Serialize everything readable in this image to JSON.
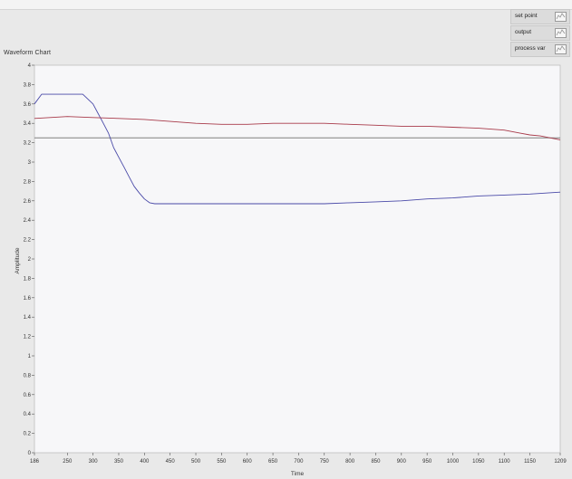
{
  "chart_data": {
    "type": "line",
    "title": "Waveform Chart",
    "xlabel": "Time",
    "ylabel": "Amplitude",
    "xlim": [
      186,
      1209
    ],
    "ylim": [
      0,
      4
    ],
    "x_ticks": [
      "186",
      "250",
      "300",
      "350",
      "400",
      "450",
      "500",
      "550",
      "600",
      "650",
      "700",
      "750",
      "800",
      "850",
      "900",
      "950",
      "1000",
      "1050",
      "1100",
      "1150",
      "1209"
    ],
    "x_tick_values": [
      186,
      250,
      300,
      350,
      400,
      450,
      500,
      550,
      600,
      650,
      700,
      750,
      800,
      850,
      900,
      950,
      1000,
      1050,
      1100,
      1150,
      1209
    ],
    "y_ticks": [
      "0",
      "0.2",
      "0.4",
      "0.6",
      "0.8",
      "1",
      "1.2",
      "1.4",
      "1.6",
      "1.8",
      "2",
      "2.2",
      "2.4",
      "2.6",
      "2.8",
      "3",
      "3.2",
      "3.4",
      "3.6",
      "3.8",
      "4"
    ],
    "grid": false,
    "legend_position": "top-right",
    "series": [
      {
        "name": "set point",
        "color": "#808080",
        "x": [
          186,
          1209
        ],
        "y": [
          3.25,
          3.25
        ]
      },
      {
        "name": "output",
        "color": "#4a4aa8",
        "x": [
          186,
          200,
          220,
          240,
          260,
          280,
          300,
          310,
          320,
          330,
          340,
          350,
          360,
          370,
          380,
          390,
          400,
          410,
          420,
          430,
          450,
          500,
          550,
          600,
          650,
          700,
          750,
          800,
          850,
          900,
          950,
          1000,
          1050,
          1100,
          1150,
          1209
        ],
        "y": [
          3.6,
          3.7,
          3.7,
          3.7,
          3.7,
          3.7,
          3.6,
          3.5,
          3.4,
          3.3,
          3.15,
          3.05,
          2.95,
          2.85,
          2.75,
          2.68,
          2.62,
          2.58,
          2.57,
          2.57,
          2.57,
          2.57,
          2.57,
          2.57,
          2.57,
          2.57,
          2.57,
          2.58,
          2.59,
          2.6,
          2.62,
          2.63,
          2.65,
          2.66,
          2.67,
          2.69
        ]
      },
      {
        "name": "process var",
        "color": "#a83a4a",
        "x": [
          186,
          250,
          300,
          350,
          400,
          450,
          500,
          550,
          600,
          650,
          700,
          750,
          800,
          850,
          900,
          950,
          1000,
          1050,
          1100,
          1130,
          1150,
          1170,
          1190,
          1209
        ],
        "y": [
          3.45,
          3.47,
          3.46,
          3.45,
          3.44,
          3.42,
          3.4,
          3.39,
          3.39,
          3.4,
          3.4,
          3.4,
          3.39,
          3.38,
          3.37,
          3.37,
          3.36,
          3.35,
          3.33,
          3.3,
          3.28,
          3.27,
          3.25,
          3.23
        ]
      }
    ]
  }
}
